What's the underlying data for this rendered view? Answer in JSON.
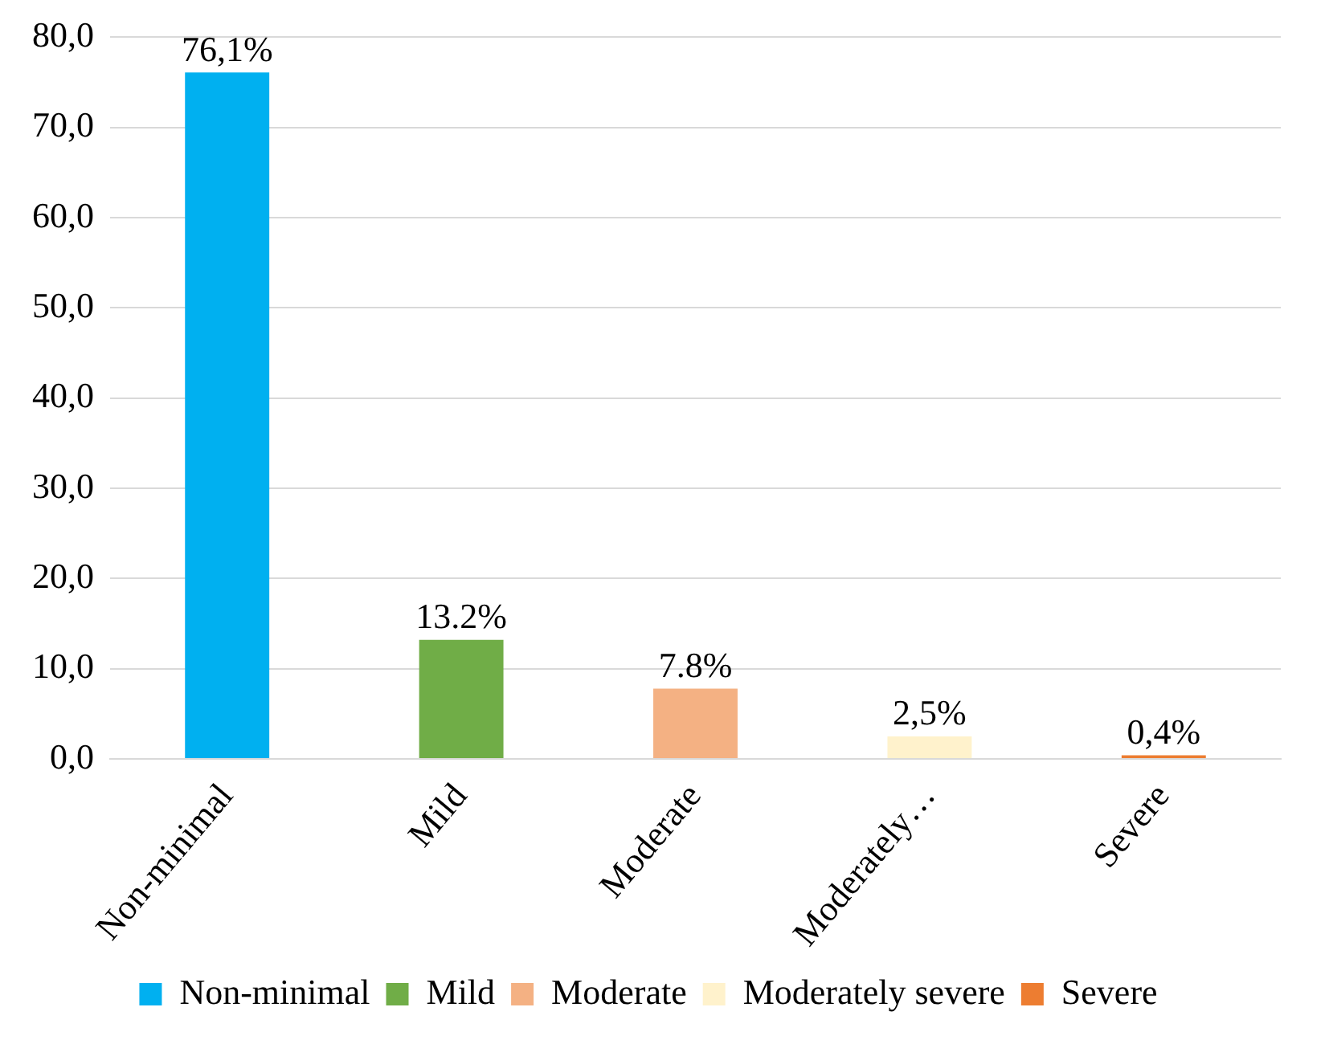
{
  "chart_data": {
    "type": "bar",
    "categories": [
      "Non-minimal",
      "Mild",
      "Moderate",
      "Moderately…",
      "Severe"
    ],
    "series": [
      {
        "name": "Non-minimal",
        "color": "#00b0f0",
        "values": [
          76.1,
          null,
          null,
          null,
          null
        ],
        "value_labels": [
          "76,1%",
          null,
          null,
          null,
          null
        ]
      },
      {
        "name": "Mild",
        "color": "#70ad47",
        "values": [
          null,
          13.2,
          null,
          null,
          null
        ],
        "value_labels": [
          null,
          "13.2%",
          null,
          null,
          null
        ]
      },
      {
        "name": "Moderate",
        "color": "#f4b183",
        "values": [
          null,
          null,
          7.8,
          null,
          null
        ],
        "value_labels": [
          null,
          null,
          "7.8%",
          null,
          null
        ]
      },
      {
        "name": "Moderately severe",
        "color": "#fff2cc",
        "values": [
          null,
          null,
          null,
          2.5,
          null
        ],
        "value_labels": [
          null,
          null,
          null,
          "2,5%",
          null
        ]
      },
      {
        "name": "Severe",
        "color": "#ed7d31",
        "values": [
          null,
          null,
          null,
          null,
          0.4
        ],
        "value_labels": [
          null,
          null,
          null,
          null,
          "0,4%"
        ]
      }
    ],
    "ylim": [
      0,
      80
    ],
    "yticks": [
      {
        "value": 0,
        "label": "0,0"
      },
      {
        "value": 10,
        "label": "10,0"
      },
      {
        "value": 20,
        "label": "20,0"
      },
      {
        "value": 30,
        "label": "30,0"
      },
      {
        "value": 40,
        "label": "40,0"
      },
      {
        "value": 50,
        "label": "50,0"
      },
      {
        "value": 60,
        "label": "60,0"
      },
      {
        "value": 70,
        "label": "70,0"
      },
      {
        "value": 80,
        "label": "80,0"
      }
    ],
    "grid": "y",
    "legend": "bottom"
  }
}
